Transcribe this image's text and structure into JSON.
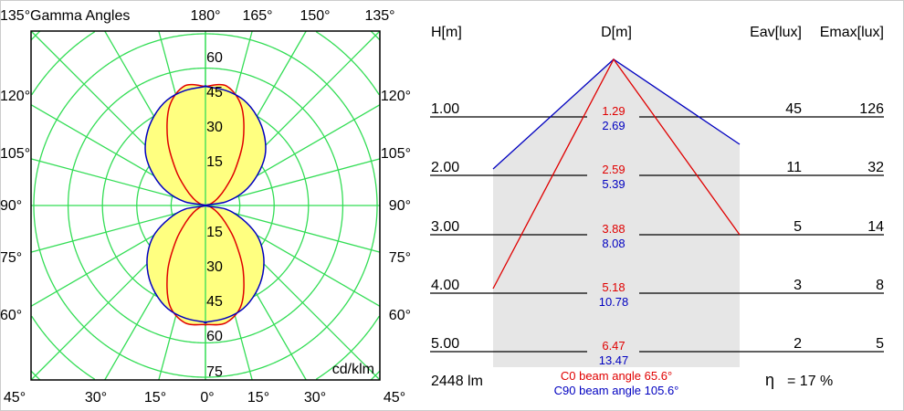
{
  "chart_data": [
    {
      "type": "polar",
      "title": "Gamma Angles",
      "unit_label": "cd/klm",
      "top_angle_labels": [
        "135°",
        "180°",
        "165°",
        "150°",
        "135°"
      ],
      "side_angle_labels": [
        "120°",
        "105°",
        "90°",
        "75°",
        "60°"
      ],
      "bottom_angle_labels": [
        "45°",
        "30°",
        "15°",
        "0°",
        "15°",
        "30°",
        "45°"
      ],
      "radial_tick_labels_upper": [
        "15",
        "30",
        "45",
        "60"
      ],
      "radial_tick_labels_lower": [
        "15",
        "30",
        "45",
        "60",
        "75"
      ],
      "radial_max": 75,
      "angular_step_deg": 15,
      "grid": true,
      "gamma": [
        0,
        10,
        20,
        30,
        40,
        50,
        60,
        70,
        80,
        90,
        100,
        110,
        120,
        130,
        140,
        150,
        160,
        170,
        180
      ],
      "series": [
        {
          "name": "C0",
          "color": "#e00000",
          "values": [
            52,
            52,
            46,
            33,
            20,
            11,
            6,
            3,
            1,
            0,
            1,
            3,
            6,
            11,
            20,
            33,
            46,
            53,
            52
          ]
        },
        {
          "name": "C90",
          "color": "#0000c0",
          "values": [
            51,
            50,
            48,
            44,
            39,
            33,
            26,
            17,
            9,
            0,
            9,
            18,
            26,
            34,
            40,
            45,
            49,
            51,
            52
          ]
        }
      ],
      "fill_color": "#ffff80",
      "grid_color": "#33dd55"
    },
    {
      "type": "table",
      "headers": {
        "h": "H[m]",
        "d": "D[m]",
        "eav": "Eav[lux]",
        "emax": "Emax[lux]"
      },
      "rows": [
        {
          "h": "1.00",
          "d_c0": "1.29",
          "d_c90": "2.69",
          "eav": "45",
          "emax": "126"
        },
        {
          "h": "2.00",
          "d_c0": "2.59",
          "d_c90": "5.39",
          "eav": "11",
          "emax": "32"
        },
        {
          "h": "3.00",
          "d_c0": "3.88",
          "d_c90": "8.08",
          "eav": "5",
          "emax": "14"
        },
        {
          "h": "4.00",
          "d_c0": "5.18",
          "d_c90": "10.78",
          "eav": "3",
          "emax": "8"
        },
        {
          "h": "5.00",
          "d_c0": "6.47",
          "d_c90": "13.47",
          "eav": "2",
          "emax": "5"
        }
      ],
      "lumens": "2448 lm",
      "beam_c0": "C0  beam angle 65.6°",
      "beam_c90": "C90 beam angle 105.6°",
      "c0_beam_angle_deg": 65.6,
      "c90_beam_angle_deg": 105.6,
      "efficiency_symbol": "η",
      "efficiency": "= 17 %",
      "c0_color": "#e00000",
      "c90_color": "#0000c0"
    }
  ]
}
